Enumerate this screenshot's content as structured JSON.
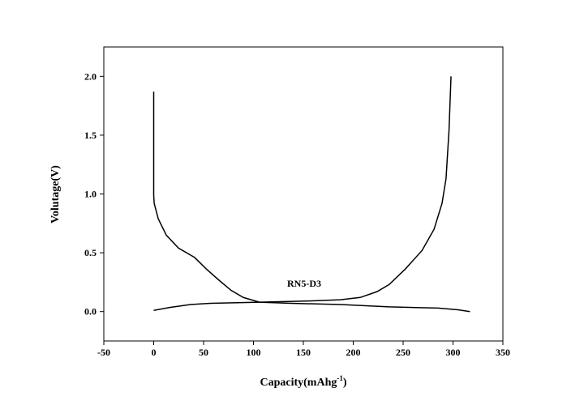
{
  "chart_data": {
    "type": "line",
    "xlabel": [
      "Capacity(mAhg",
      "-1",
      ")"
    ],
    "ylabel": "Volutage(V)",
    "annotation": "RN5-D3",
    "xlim": [
      -50,
      350
    ],
    "xticks": [
      -50,
      0,
      50,
      100,
      150,
      200,
      250,
      300,
      350
    ],
    "ylim": [
      -0.25,
      2.25
    ],
    "yticks": [
      {
        "value": 0,
        "label": "0.0"
      },
      0.5,
      {
        "value": 1,
        "label": "1.0"
      },
      1.5,
      {
        "value": 2,
        "label": "2.0"
      }
    ],
    "series": [
      {
        "color": "#000000",
        "x": [
          0,
          0,
          0.5,
          4.5,
          12.6,
          24.8,
          41,
          53,
          65,
          77.6,
          89.8,
          106,
          138,
          187,
          236,
          285,
          305,
          317
        ],
        "values": [
          1.87,
          0.99,
          0.92,
          0.79,
          0.65,
          0.54,
          0.46,
          0.36,
          0.27,
          0.18,
          0.12,
          0.08,
          0.07,
          0.06,
          0.04,
          0.03,
          0.015,
          0.0
        ]
      },
      {
        "color": "#000000",
        "x": [
          0,
          16,
          37,
          57,
          106,
          155,
          187,
          207,
          224,
          236,
          252,
          269,
          281,
          289,
          293,
          296,
          298
        ],
        "values": [
          0.01,
          0.035,
          0.06,
          0.07,
          0.08,
          0.09,
          0.1,
          0.12,
          0.17,
          0.23,
          0.36,
          0.52,
          0.7,
          0.92,
          1.13,
          1.54,
          2.0
        ]
      }
    ]
  }
}
